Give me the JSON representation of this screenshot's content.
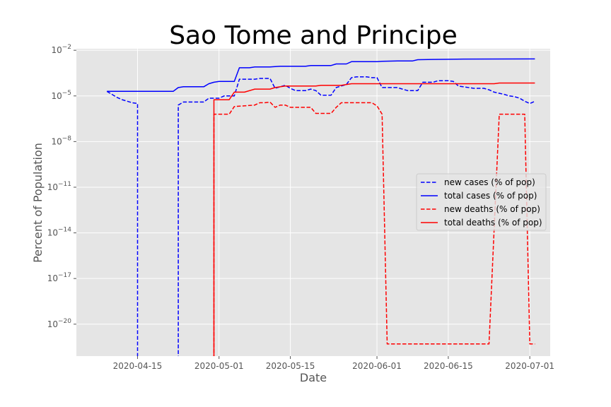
{
  "chart_data": {
    "type": "line",
    "title": "Sao Tome and Principe",
    "xlabel": "Date",
    "ylabel": "Percent of Population",
    "yscale": "log",
    "ylim_exp": [
      -22.1,
      -1.9
    ],
    "xlim": [
      "2020-04-03",
      "2020-07-05"
    ],
    "grid": true,
    "legend_position": "center-right",
    "x_ticks": [
      "2020-04-15",
      "2020-05-01",
      "2020-05-15",
      "2020-06-01",
      "2020-06-15",
      "2020-07-01"
    ],
    "y_ticks": [
      {
        "exp": -2,
        "label": "10^-2"
      },
      {
        "exp": -5,
        "label": "10^-5"
      },
      {
        "exp": -8,
        "label": "10^-8"
      },
      {
        "exp": -11,
        "label": "10^-11"
      },
      {
        "exp": -14,
        "label": "10^-14"
      },
      {
        "exp": -17,
        "label": "10^-17"
      },
      {
        "exp": -20,
        "label": "10^-20"
      }
    ],
    "series": [
      {
        "name": "new cases (% of pop)",
        "color": "#0000ff",
        "dash": true,
        "points": [
          [
            "2020-04-09",
            -4.7
          ],
          [
            "2020-04-10",
            -4.9
          ],
          [
            "2020-04-11",
            -5.1
          ],
          [
            "2020-04-12",
            -5.25
          ],
          [
            "2020-04-13",
            -5.35
          ],
          [
            "2020-04-14",
            -5.45
          ],
          [
            "2020-04-15",
            -5.5
          ],
          [
            "2020-04-15",
            -23
          ],
          [
            "2020-04-23",
            -23
          ],
          [
            "2020-04-23",
            -5.6
          ],
          [
            "2020-04-24",
            -5.4
          ],
          [
            "2020-04-28",
            -5.4
          ],
          [
            "2020-04-29",
            -5.15
          ],
          [
            "2020-05-01",
            -5.15
          ],
          [
            "2020-05-02",
            -5.0
          ],
          [
            "2020-05-04",
            -5.0
          ],
          [
            "2020-05-05",
            -3.9
          ],
          [
            "2020-05-08",
            -3.9
          ],
          [
            "2020-05-09",
            -3.85
          ],
          [
            "2020-05-11",
            -3.85
          ],
          [
            "2020-05-12",
            -4.5
          ],
          [
            "2020-05-13",
            -4.4
          ],
          [
            "2020-05-14",
            -4.3
          ],
          [
            "2020-05-15",
            -4.5
          ],
          [
            "2020-05-16",
            -4.65
          ],
          [
            "2020-05-18",
            -4.65
          ],
          [
            "2020-05-19",
            -4.55
          ],
          [
            "2020-05-20",
            -4.65
          ],
          [
            "2020-05-21",
            -4.95
          ],
          [
            "2020-05-23",
            -4.95
          ],
          [
            "2020-05-24",
            -4.45
          ],
          [
            "2020-05-26",
            -4.25
          ],
          [
            "2020-05-27",
            -3.8
          ],
          [
            "2020-05-28",
            -3.75
          ],
          [
            "2020-05-30",
            -3.75
          ],
          [
            "2020-05-31",
            -3.8
          ],
          [
            "2020-06-01",
            -3.8
          ],
          [
            "2020-06-02",
            -4.45
          ],
          [
            "2020-06-05",
            -4.45
          ],
          [
            "2020-06-06",
            -4.55
          ],
          [
            "2020-06-07",
            -4.65
          ],
          [
            "2020-06-09",
            -4.65
          ],
          [
            "2020-06-10",
            -4.1
          ],
          [
            "2020-06-12",
            -4.1
          ],
          [
            "2020-06-13",
            -4.0
          ],
          [
            "2020-06-15",
            -4.0
          ],
          [
            "2020-06-16",
            -4.05
          ],
          [
            "2020-06-17",
            -4.35
          ],
          [
            "2020-06-20",
            -4.5
          ],
          [
            "2020-06-22",
            -4.5
          ],
          [
            "2020-06-23",
            -4.6
          ],
          [
            "2020-06-24",
            -4.75
          ],
          [
            "2020-06-26",
            -4.9
          ],
          [
            "2020-06-27",
            -5.0
          ],
          [
            "2020-06-28",
            -5.05
          ],
          [
            "2020-06-29",
            -5.15
          ],
          [
            "2020-06-30",
            -5.35
          ],
          [
            "2020-07-01",
            -5.5
          ],
          [
            "2020-07-02",
            -5.35
          ]
        ]
      },
      {
        "name": "total cases (% of pop)",
        "color": "#0000ff",
        "dash": false,
        "points": [
          [
            "2020-04-09",
            -4.7
          ],
          [
            "2020-04-22",
            -4.7
          ],
          [
            "2020-04-23",
            -4.45
          ],
          [
            "2020-04-24",
            -4.4
          ],
          [
            "2020-04-28",
            -4.4
          ],
          [
            "2020-04-29",
            -4.2
          ],
          [
            "2020-04-30",
            -4.1
          ],
          [
            "2020-05-01",
            -4.05
          ],
          [
            "2020-05-04",
            -4.05
          ],
          [
            "2020-05-05",
            -3.15
          ],
          [
            "2020-05-07",
            -3.15
          ],
          [
            "2020-05-08",
            -3.1
          ],
          [
            "2020-05-11",
            -3.1
          ],
          [
            "2020-05-13",
            -3.05
          ],
          [
            "2020-05-18",
            -3.05
          ],
          [
            "2020-05-19",
            -3.0
          ],
          [
            "2020-05-23",
            -3.0
          ],
          [
            "2020-05-24",
            -2.9
          ],
          [
            "2020-05-26",
            -2.9
          ],
          [
            "2020-05-27",
            -2.75
          ],
          [
            "2020-06-01",
            -2.75
          ],
          [
            "2020-06-02",
            -2.72
          ],
          [
            "2020-06-05",
            -2.7
          ],
          [
            "2020-06-08",
            -2.7
          ],
          [
            "2020-06-09",
            -2.62
          ],
          [
            "2020-06-12",
            -2.6
          ],
          [
            "2020-06-18",
            -2.58
          ],
          [
            "2020-07-02",
            -2.57
          ]
        ]
      },
      {
        "name": "new deaths (% of pop)",
        "color": "#ff0000",
        "dash": true,
        "points": [
          [
            "2020-04-30",
            -23
          ],
          [
            "2020-04-30",
            -6.2
          ],
          [
            "2020-05-03",
            -6.2
          ],
          [
            "2020-05-04",
            -5.7
          ],
          [
            "2020-05-06",
            -5.65
          ],
          [
            "2020-05-08",
            -5.6
          ],
          [
            "2020-05-09",
            -5.45
          ],
          [
            "2020-05-10",
            -5.45
          ],
          [
            "2020-05-11",
            -5.4
          ],
          [
            "2020-05-12",
            -5.75
          ],
          [
            "2020-05-13",
            -5.6
          ],
          [
            "2020-05-14",
            -5.6
          ],
          [
            "2020-05-15",
            -5.75
          ],
          [
            "2020-05-19",
            -5.75
          ],
          [
            "2020-05-20",
            -6.15
          ],
          [
            "2020-05-23",
            -6.15
          ],
          [
            "2020-05-24",
            -5.75
          ],
          [
            "2020-05-25",
            -5.45
          ],
          [
            "2020-05-31",
            -5.45
          ],
          [
            "2020-06-01",
            -5.65
          ],
          [
            "2020-06-02",
            -6.2
          ],
          [
            "2020-06-03",
            -21.3
          ],
          [
            "2020-06-23",
            -21.3
          ],
          [
            "2020-06-25",
            -6.2
          ],
          [
            "2020-06-30",
            -6.2
          ],
          [
            "2020-07-01",
            -21.3
          ],
          [
            "2020-07-02",
            -21.3
          ]
        ]
      },
      {
        "name": "total deaths (% of pop)",
        "color": "#ff0000",
        "dash": false,
        "points": [
          [
            "2020-04-30",
            -23
          ],
          [
            "2020-04-30",
            -5.25
          ],
          [
            "2020-05-03",
            -5.25
          ],
          [
            "2020-05-04",
            -4.75
          ],
          [
            "2020-05-06",
            -4.75
          ],
          [
            "2020-05-08",
            -4.55
          ],
          [
            "2020-05-11",
            -4.55
          ],
          [
            "2020-05-12",
            -4.45
          ],
          [
            "2020-05-14",
            -4.35
          ],
          [
            "2020-05-20",
            -4.35
          ],
          [
            "2020-05-21",
            -4.3
          ],
          [
            "2020-05-25",
            -4.3
          ],
          [
            "2020-05-26",
            -4.25
          ],
          [
            "2020-05-27",
            -4.2
          ],
          [
            "2020-06-24",
            -4.2
          ],
          [
            "2020-06-25",
            -4.15
          ],
          [
            "2020-07-02",
            -4.15
          ]
        ]
      }
    ]
  }
}
